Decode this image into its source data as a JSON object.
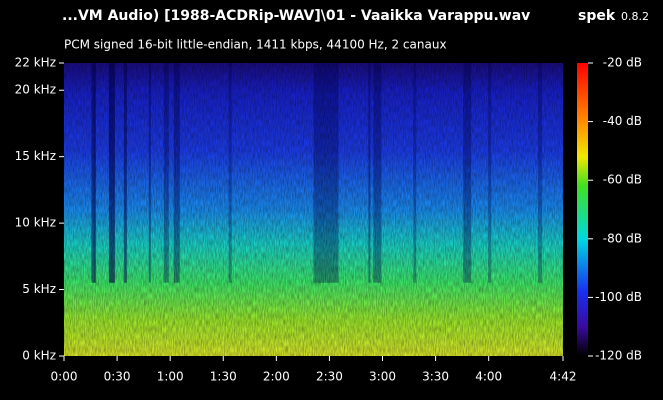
{
  "chart_data": {
    "type": "spectrogram",
    "title": "...VM Audio) [1988-ACDRip-WAV]\\01 - Vaaikka Varappu.wav",
    "app_name": "spek",
    "app_version": "0.8.2",
    "subtitle": "PCM signed 16-bit little-endian, 1411 kbps, 44100 Hz, 2 canaux",
    "xlim": [
      0,
      282
    ],
    "xticks": [
      {
        "value": 0,
        "label": "0:00"
      },
      {
        "value": 30,
        "label": "0:30"
      },
      {
        "value": 60,
        "label": "1:00"
      },
      {
        "value": 90,
        "label": "1:30"
      },
      {
        "value": 120,
        "label": "2:00"
      },
      {
        "value": 150,
        "label": "2:30"
      },
      {
        "value": 180,
        "label": "3:00"
      },
      {
        "value": 210,
        "label": "3:30"
      },
      {
        "value": 240,
        "label": "4:00"
      },
      {
        "value": 282,
        "label": "4:42"
      }
    ],
    "ylim": [
      0,
      22.05
    ],
    "yticks": [
      {
        "value": 0,
        "label": "0 kHz"
      },
      {
        "value": 5,
        "label": "5 kHz"
      },
      {
        "value": 10,
        "label": "10 kHz"
      },
      {
        "value": 15,
        "label": "15 kHz"
      },
      {
        "value": 20,
        "label": "20 kHz"
      },
      {
        "value": 22.05,
        "label": "22 kHz"
      }
    ],
    "zlim": [
      -120,
      -20
    ],
    "zticks": [
      {
        "value": -20,
        "label": "-20 dB"
      },
      {
        "value": -40,
        "label": "-40 dB"
      },
      {
        "value": -60,
        "label": "-60 dB"
      },
      {
        "value": -80,
        "label": "-80 dB"
      },
      {
        "value": -100,
        "label": "-100 dB"
      },
      {
        "value": -120,
        "label": "-120 dB"
      }
    ]
  }
}
